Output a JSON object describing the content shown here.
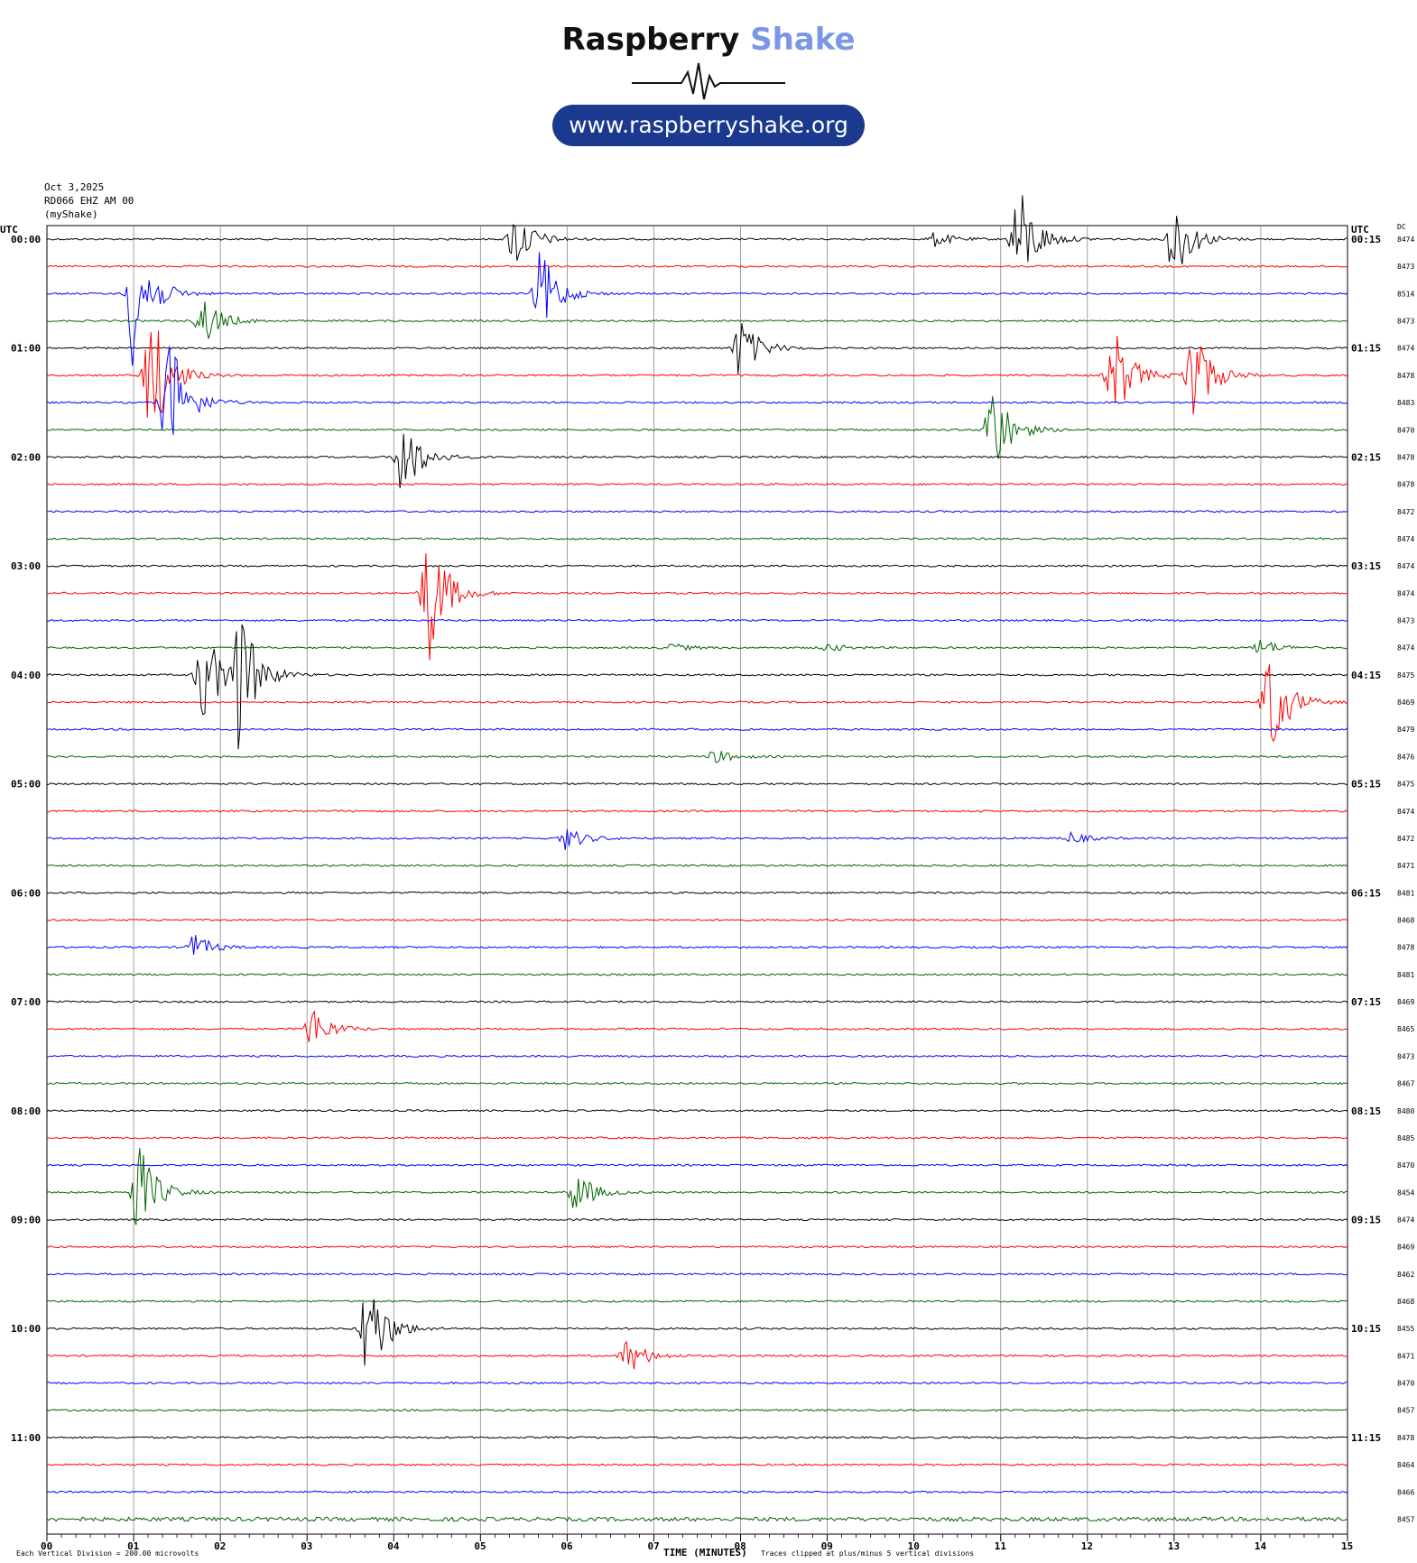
{
  "header": {
    "brand_word": "Raspberry",
    "brand_accent": "Shake",
    "url": "www.raspberryshake.org"
  },
  "meta": {
    "date": "Oct 3,2025",
    "station": "RD066 EHZ AM 00",
    "network_label": "(myShake)",
    "utc_left": "UTC",
    "utc_right": "UTC",
    "dc_label": "DC"
  },
  "footer": {
    "scale_note": "Each Vertical Division = 200.00 microvolts",
    "xlabel": "TIME (MINUTES)",
    "clip_note": "Traces clipped at plus/minus 5 vertical divisions"
  },
  "colors": {
    "trace_cycle": [
      "#000000",
      "#ff0000",
      "#0000ff",
      "#006400"
    ],
    "grid": "#888888",
    "axis": "#000000"
  },
  "chart_data": {
    "type": "line",
    "subtype": "helicorder",
    "xlabel": "TIME (MINUTES)",
    "xlim": [
      0,
      15
    ],
    "x_ticks": [
      "00",
      "01",
      "02",
      "03",
      "04",
      "05",
      "06",
      "07",
      "08",
      "09",
      "10",
      "11",
      "12",
      "13",
      "14",
      "15"
    ],
    "grid": true,
    "left_time_labels": [
      "00:00",
      "01:00",
      "02:00",
      "03:00",
      "04:00",
      "05:00",
      "06:00",
      "07:00",
      "08:00",
      "09:00",
      "10:00",
      "11:00"
    ],
    "right_time_labels": [
      "00:15",
      "01:15",
      "02:15",
      "03:15",
      "04:15",
      "05:15",
      "06:15",
      "07:15",
      "08:15",
      "09:15",
      "10:15",
      "11:15"
    ],
    "dc_values": [
      8474,
      8473,
      8514,
      8473,
      8474,
      8478,
      8483,
      8470,
      8478,
      8478,
      8472,
      8474,
      8474,
      8474,
      8473,
      8474,
      8475,
      8469,
      8479,
      8476,
      8475,
      8474,
      8472,
      8471,
      8481,
      8468,
      8478,
      8481,
      8469,
      8465,
      8473,
      8467,
      8480,
      8485,
      8470,
      8454,
      8474,
      8469,
      8462,
      8468,
      8455,
      8471,
      8470,
      8457,
      8478,
      8464,
      8466,
      8457
    ],
    "trace_count": 48,
    "events": [
      {
        "row": 0,
        "minute": 5.4,
        "amp": 2.2
      },
      {
        "row": 2,
        "minute": 5.7,
        "amp": 3.0
      },
      {
        "row": 0,
        "minute": 11.2,
        "amp": 4.0
      },
      {
        "row": 0,
        "minute": 13.0,
        "amp": 3.0
      },
      {
        "row": 0,
        "minute": 10.25,
        "amp": 0.5
      },
      {
        "row": 2,
        "minute": 1.0,
        "amp": 5.0
      },
      {
        "row": 3,
        "minute": 1.8,
        "amp": 1.8
      },
      {
        "row": 4,
        "minute": 8.0,
        "amp": 2.2
      },
      {
        "row": 5,
        "minute": 1.2,
        "amp": 5.0
      },
      {
        "row": 6,
        "minute": 1.4,
        "amp": 5.0
      },
      {
        "row": 5,
        "minute": 12.3,
        "amp": 3.5
      },
      {
        "row": 5,
        "minute": 13.2,
        "amp": 4.0
      },
      {
        "row": 7,
        "minute": 10.9,
        "amp": 3.5
      },
      {
        "row": 8,
        "minute": 4.1,
        "amp": 3.0
      },
      {
        "row": 13,
        "minute": 4.4,
        "amp": 5.0
      },
      {
        "row": 16,
        "minute": 1.8,
        "amp": 3.5
      },
      {
        "row": 16,
        "minute": 2.2,
        "amp": 5.0
      },
      {
        "row": 17,
        "minute": 14.1,
        "amp": 4.0
      },
      {
        "row": 15,
        "minute": 14.0,
        "amp": 0.6
      },
      {
        "row": 15,
        "minute": 9.0,
        "amp": 0.3
      },
      {
        "row": 15,
        "minute": 7.2,
        "amp": 0.3
      },
      {
        "row": 19,
        "minute": 7.7,
        "amp": 0.5
      },
      {
        "row": 22,
        "minute": 6.0,
        "amp": 0.8
      },
      {
        "row": 22,
        "minute": 11.8,
        "amp": 0.4
      },
      {
        "row": 35,
        "minute": 1.05,
        "amp": 3.5
      },
      {
        "row": 35,
        "minute": 6.1,
        "amp": 1.5
      },
      {
        "row": 40,
        "minute": 3.7,
        "amp": 4.0
      },
      {
        "row": 29,
        "minute": 3.05,
        "amp": 1.6
      },
      {
        "row": 41,
        "minute": 6.7,
        "amp": 1.3
      },
      {
        "row": 26,
        "minute": 1.7,
        "amp": 0.9
      }
    ]
  }
}
